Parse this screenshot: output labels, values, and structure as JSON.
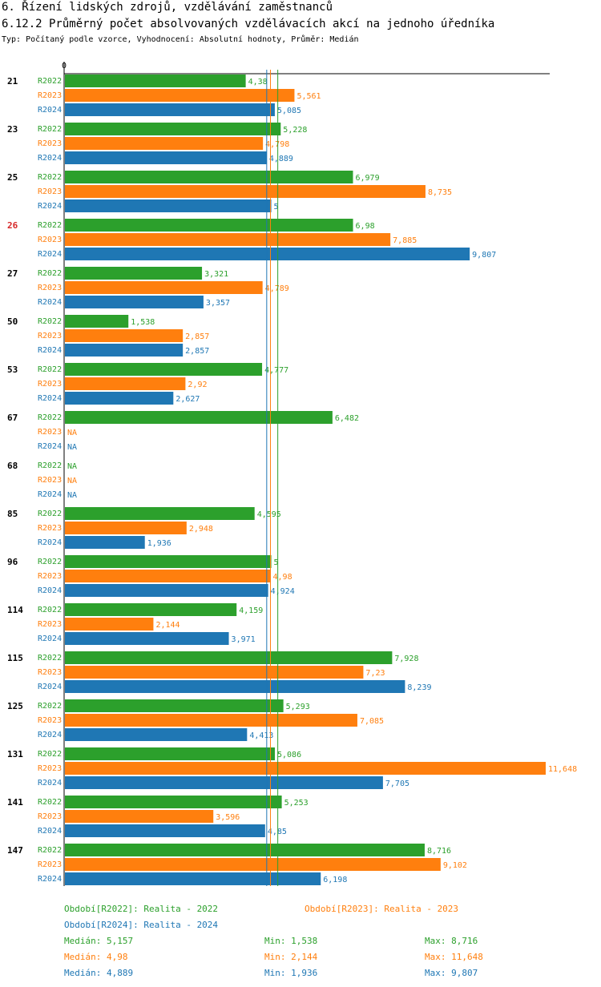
{
  "header": {
    "title1": "6. Řízení lidských zdrojů, vzdělávání zaměstnanců",
    "title2": "6.12.2 Průměrný počet absolvovaných vzdělávacích akcí na jednoho úředníka",
    "subtitle": "Typ: Počítaný podle vzorce, Vyhodnocení: Absolutní hodnoty, Průměr: Medián"
  },
  "colors": {
    "R2022": "#2ca02c",
    "R2023": "#ff7f0e",
    "R2024": "#1f77b4",
    "highlight": "#d62728",
    "label": "#000000"
  },
  "chart_data": {
    "type": "bar",
    "orientation": "horizontal",
    "axis_zero_label": "0",
    "xlim": [
      0,
      11.648
    ],
    "series_names": [
      "R2022",
      "R2023",
      "R2024"
    ],
    "groups": [
      {
        "label": "21",
        "highlight": false,
        "values": [
          4.38,
          5.561,
          5.085
        ],
        "labels": [
          "4,38",
          "5,561",
          "5,085"
        ]
      },
      {
        "label": "23",
        "highlight": false,
        "values": [
          5.228,
          4.798,
          4.889
        ],
        "labels": [
          "5,228",
          "4,798",
          "4,889"
        ]
      },
      {
        "label": "25",
        "highlight": false,
        "values": [
          6.979,
          8.735,
          5
        ],
        "labels": [
          "6,979",
          "8,735",
          "5"
        ]
      },
      {
        "label": "26",
        "highlight": true,
        "values": [
          6.98,
          7.885,
          9.807
        ],
        "labels": [
          "6,98",
          "7,885",
          "9,807"
        ]
      },
      {
        "label": "27",
        "highlight": false,
        "values": [
          3.321,
          4.789,
          3.357
        ],
        "labels": [
          "3,321",
          "4,789",
          "3,357"
        ]
      },
      {
        "label": "50",
        "highlight": false,
        "values": [
          1.538,
          2.857,
          2.857
        ],
        "labels": [
          "1,538",
          "2,857",
          "2,857"
        ]
      },
      {
        "label": "53",
        "highlight": false,
        "values": [
          4.777,
          2.92,
          2.627
        ],
        "labels": [
          "4,777",
          "2,92",
          "2,627"
        ]
      },
      {
        "label": "67",
        "highlight": false,
        "values": [
          6.482,
          null,
          null
        ],
        "labels": [
          "6,482",
          "NA",
          "NA"
        ]
      },
      {
        "label": "68",
        "highlight": false,
        "values": [
          null,
          null,
          null
        ],
        "labels": [
          "NA",
          "NA",
          "NA"
        ]
      },
      {
        "label": "85",
        "highlight": false,
        "values": [
          4.595,
          2.948,
          1.936
        ],
        "labels": [
          "4,595",
          "2,948",
          "1,936"
        ]
      },
      {
        "label": "96",
        "highlight": false,
        "values": [
          5,
          4.98,
          4.924
        ],
        "labels": [
          "5",
          "4,98",
          "4,924"
        ]
      },
      {
        "label": "114",
        "highlight": false,
        "values": [
          4.159,
          2.144,
          3.971
        ],
        "labels": [
          "4,159",
          "2,144",
          "3,971"
        ]
      },
      {
        "label": "115",
        "highlight": false,
        "values": [
          7.928,
          7.23,
          8.239
        ],
        "labels": [
          "7,928",
          "7,23",
          "8,239"
        ]
      },
      {
        "label": "125",
        "highlight": false,
        "values": [
          5.293,
          7.085,
          4.413
        ],
        "labels": [
          "5,293",
          "7,085",
          "4,413"
        ]
      },
      {
        "label": "131",
        "highlight": false,
        "values": [
          5.086,
          11.648,
          7.705
        ],
        "labels": [
          "5,086",
          "11,648",
          "7,705"
        ]
      },
      {
        "label": "141",
        "highlight": false,
        "values": [
          5.253,
          3.596,
          4.85
        ],
        "labels": [
          "5,253",
          "3,596",
          "4,85"
        ]
      },
      {
        "label": "147",
        "highlight": false,
        "values": [
          8.716,
          9.102,
          6.198
        ],
        "labels": [
          "8,716",
          "9,102",
          "6,198"
        ]
      }
    ],
    "medians": [
      5.157,
      4.98,
      4.889
    ]
  },
  "legend": {
    "p2022": "Období[R2022]: Realita - 2022",
    "p2023": "Období[R2023]: Realita - 2023",
    "p2024": "Období[R2024]: Realita - 2024",
    "stats": [
      {
        "median": "Medián: 5,157",
        "min": "Min: 1,538",
        "max": "Max: 8,716"
      },
      {
        "median": "Medián: 4,98",
        "min": "Min: 2,144",
        "max": "Max: 11,648"
      },
      {
        "median": "Medián: 4,889",
        "min": "Min: 1,936",
        "max": "Max: 9,807"
      }
    ]
  }
}
